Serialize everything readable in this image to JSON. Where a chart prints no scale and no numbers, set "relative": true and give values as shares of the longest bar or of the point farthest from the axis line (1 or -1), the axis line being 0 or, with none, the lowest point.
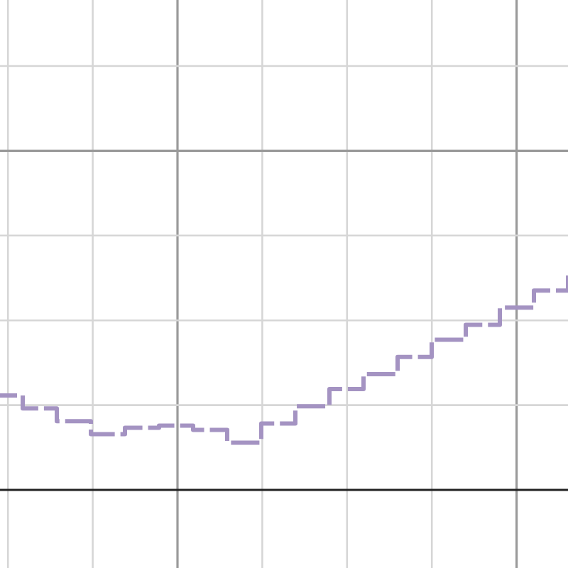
{
  "chart_data": {
    "type": "step",
    "relative": true,
    "categories": [
      null,
      null,
      null,
      null,
      null,
      null,
      null,
      null,
      null,
      null,
      null,
      null,
      null,
      null,
      null,
      null,
      null,
      null
    ],
    "series": [
      {
        "color": "#a493c2",
        "values": [
          0.44,
          0.38,
          0.32,
          0.26,
          0.29,
          0.3,
          0.28,
          0.22,
          0.31,
          0.39,
          0.47,
          0.54,
          0.62,
          0.7,
          0.77,
          0.85,
          0.93,
          1
        ]
      }
    ],
    "line_style": "dashed",
    "grid": true,
    "tick_labels": false
  }
}
